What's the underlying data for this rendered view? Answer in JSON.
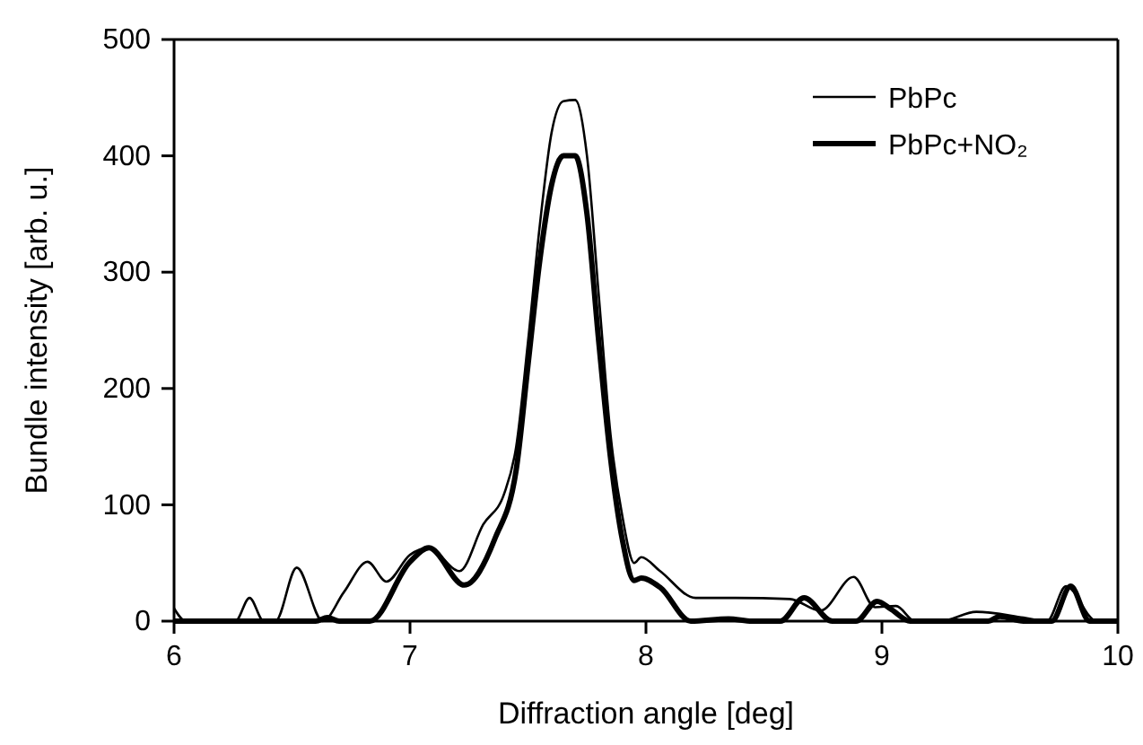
{
  "chart_data": {
    "type": "line",
    "xlabel": "Diffraction angle [deg]",
    "ylabel": "Bundle intensity [arb. u.]",
    "xlim": [
      6,
      10
    ],
    "ylim": [
      0,
      500
    ],
    "xticks": [
      6,
      7,
      8,
      9,
      10
    ],
    "yticks": [
      0,
      100,
      200,
      300,
      400,
      500
    ],
    "grid": false,
    "legend": "top right",
    "marker": "none",
    "series": [
      {
        "name": "PbPc",
        "color": "#000000",
        "x": [
          6.0,
          6.05,
          6.26,
          6.32,
          6.38,
          6.43,
          6.52,
          6.63,
          6.72,
          6.82,
          6.9,
          7.0,
          7.08,
          7.21,
          7.31,
          7.4,
          7.45,
          7.5,
          7.55,
          7.6,
          7.65,
          7.7,
          7.75,
          7.8,
          7.85,
          7.9,
          7.95,
          7.98,
          8.06,
          8.21,
          8.38,
          8.61,
          8.74,
          8.88,
          8.97,
          9.06,
          9.14,
          9.25,
          9.4,
          9.6,
          9.7,
          9.78,
          9.91,
          10.0
        ],
        "values": [
          11,
          0,
          0,
          20,
          0,
          0,
          46,
          0,
          25,
          51,
          34,
          57,
          63,
          43,
          83,
          110,
          150,
          240,
          340,
          420,
          447,
          448,
          400,
          280,
          160,
          90,
          50,
          55,
          43,
          20,
          20,
          19,
          9,
          38,
          12,
          13,
          0,
          0,
          8,
          3,
          0,
          30,
          0,
          0
        ]
      },
      {
        "name": "PbPc+NO₂",
        "color": "#000000",
        "x": [
          6.0,
          6.6,
          6.65,
          6.7,
          6.83,
          7.0,
          7.08,
          7.23,
          7.36,
          7.45,
          7.5,
          7.55,
          7.6,
          7.65,
          7.7,
          7.75,
          7.8,
          7.85,
          7.9,
          7.95,
          7.98,
          8.06,
          8.19,
          8.35,
          8.45,
          8.57,
          8.67,
          8.79,
          8.89,
          8.98,
          9.04,
          9.12,
          9.45,
          9.5,
          9.6,
          9.72,
          9.8,
          9.88,
          10.0
        ],
        "values": [
          0,
          0,
          3,
          0,
          0,
          51,
          63,
          31,
          71,
          130,
          220,
          310,
          375,
          400,
          400,
          350,
          240,
          140,
          70,
          35,
          37,
          29,
          0,
          2,
          0,
          0,
          20,
          0,
          0,
          17,
          10,
          0,
          0,
          4,
          0,
          0,
          30,
          0,
          0
        ]
      }
    ]
  }
}
